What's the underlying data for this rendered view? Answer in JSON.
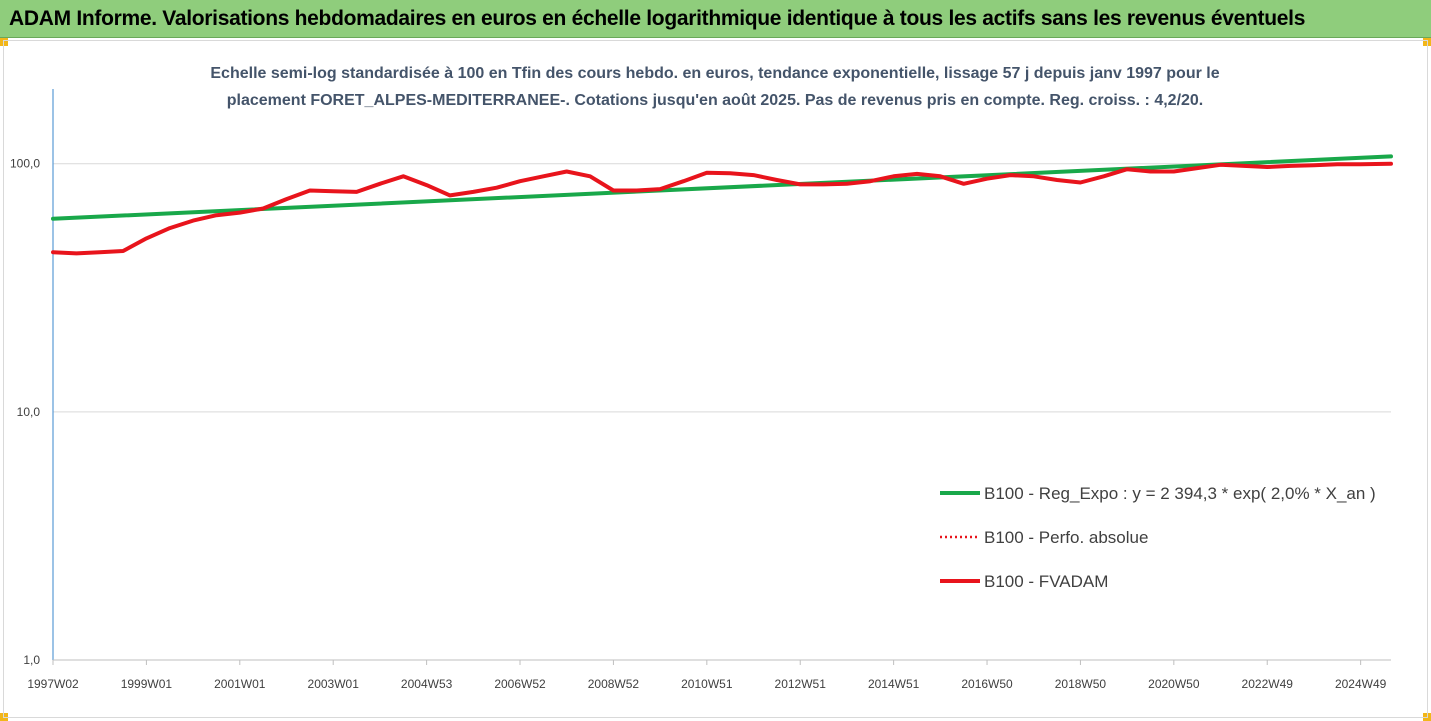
{
  "banner": {
    "title": "ADAM Informe. Valorisations hebdomadaires en euros en échelle logarithmique identique à tous les actifs sans les revenus éventuels"
  },
  "colors": {
    "banner_bg": "#8fcd7c",
    "corner_accent": "#f2b619",
    "regression": "#19a84a",
    "fvadam": "#e8141c",
    "perfo": "#e8141c",
    "subtitle": "#44546a",
    "gridline": "#d9d9d9"
  },
  "chart_data": {
    "type": "line",
    "title_line1": "Echelle semi-log standardisée à 100 en Tfin des cours hebdo. en euros, tendance exponentielle, lissage 57 j depuis janv 1997 pour le",
    "title_line2": "placement FORET_ALPES-MEDITERRANEE-. Cotations jusqu'en août 2025. Pas de revenus pris en compte. Reg. croiss. : 4,2/20.",
    "y_scale": "log",
    "ylim": [
      1,
      200
    ],
    "y_ticks": [
      1,
      10,
      100
    ],
    "y_tick_labels": [
      "1,0",
      "10,0",
      "100,0"
    ],
    "xlim": [
      1997.0,
      2025.65
    ],
    "x_tick_labels": [
      "1997W02",
      "1999W01",
      "2001W01",
      "2003W01",
      "2004W53",
      "2006W52",
      "2008W52",
      "2010W51",
      "2012W51",
      "2014W51",
      "2016W50",
      "2018W50",
      "2020W50",
      "2022W49",
      "2024W49"
    ],
    "x_tick_positions": [
      1997.0,
      1999.0,
      2001.0,
      2003.0,
      2005.0,
      2007.0,
      2009.0,
      2011.0,
      2013.0,
      2015.0,
      2017.0,
      2019.0,
      2021.0,
      2023.0,
      2025.0
    ],
    "grid": "horizontal",
    "legend_position": "lower-right",
    "series": [
      {
        "name": "B100 - Reg_Expo : y = 2 394,3 * exp( 2,0% *  X_an )",
        "style": "solid",
        "x": [
          1997.0,
          2025.65
        ],
        "y": [
          60.0,
          107.0
        ]
      },
      {
        "name": "B100 - Perfo. absolue",
        "style": "dotted",
        "x": [],
        "y": []
      },
      {
        "name": "B100 - FVADAM",
        "style": "solid",
        "x": [
          1997.0,
          1997.5,
          1998.0,
          1998.5,
          1999.0,
          1999.5,
          2000.0,
          2000.5,
          2001.0,
          2001.5,
          2002.0,
          2002.5,
          2003.0,
          2003.5,
          2004.0,
          2004.5,
          2005.0,
          2005.5,
          2006.0,
          2006.5,
          2007.0,
          2007.5,
          2008.0,
          2008.5,
          2009.0,
          2009.5,
          2010.0,
          2010.5,
          2011.0,
          2011.5,
          2012.0,
          2012.5,
          2013.0,
          2013.5,
          2014.0,
          2014.5,
          2015.0,
          2015.5,
          2016.0,
          2016.5,
          2017.0,
          2017.5,
          2018.0,
          2018.5,
          2019.0,
          2019.5,
          2020.0,
          2020.5,
          2021.0,
          2021.5,
          2022.0,
          2022.5,
          2023.0,
          2023.5,
          2024.0,
          2024.5,
          2025.0,
          2025.65
        ],
        "y": [
          44,
          43.5,
          44,
          44.5,
          50,
          55,
          59,
          62,
          63.5,
          66,
          72,
          78,
          77.5,
          77,
          83,
          89,
          82,
          74.5,
          77,
          80,
          85,
          89,
          93,
          89,
          78,
          78,
          79,
          85,
          92,
          91.5,
          90,
          86,
          82.5,
          82.5,
          83,
          85,
          89,
          91,
          89,
          83,
          87,
          90,
          89,
          86,
          84,
          89,
          95,
          93,
          93,
          96,
          99,
          98,
          97,
          98,
          98.5,
          99.5,
          99.5,
          100
        ]
      }
    ]
  }
}
